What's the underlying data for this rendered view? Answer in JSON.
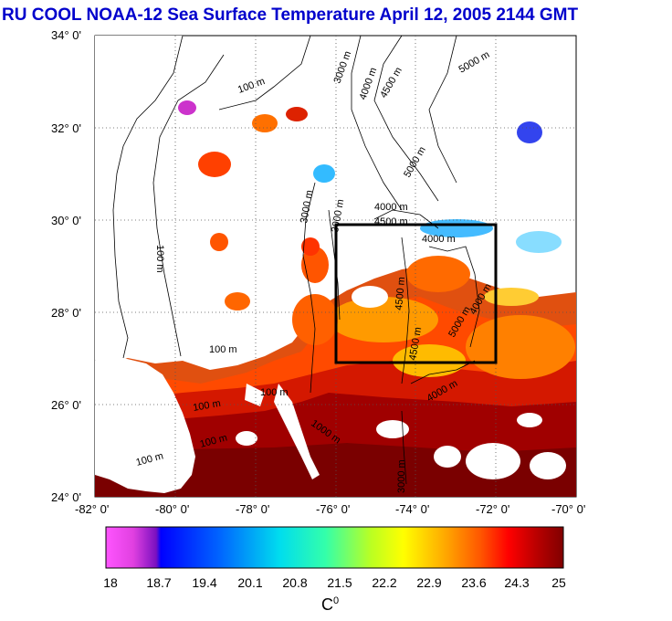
{
  "title": "RU COOL  NOAA-12 Sea Surface Temperature April 12, 2005 2144 GMT",
  "map": {
    "lat_labels": [
      "34° 0'",
      "32° 0'",
      "30° 0'",
      "28° 0'",
      "26° 0'",
      "24° 0'"
    ],
    "lon_labels": [
      "-82° 0'",
      "-80° 0'",
      "-78° 0'",
      "-76° 0'",
      "-74° 0'",
      "-72° 0'",
      "-70° 0'"
    ],
    "lat_range": [
      24,
      34
    ],
    "lon_range": [
      -82,
      -70
    ],
    "study_box": {
      "lon_min": -76,
      "lon_max": -72,
      "lat_min": 27,
      "lat_max": 30
    },
    "contour_labels": [
      "100 m",
      "100 m",
      "100 m",
      "100 m",
      "100 m",
      "100 m",
      "100 m",
      "1000 m",
      "3000 m",
      "3000 m",
      "4000 m",
      "4500 m",
      "5000 m",
      "4000 m",
      "4500 m",
      "4000 m",
      "5000 m",
      "4500 m",
      "4000 m",
      "3000 m",
      "4500 m",
      "4000 m",
      "5000 m",
      "3000 m"
    ]
  },
  "colorbar": {
    "labels": [
      "18",
      "18.7",
      "19.4",
      "20.1",
      "20.8",
      "21.5",
      "22.2",
      "22.9",
      "23.6",
      "24.3",
      "25"
    ],
    "unit": "C",
    "unit_sup": "0",
    "min": 18,
    "max": 25
  }
}
